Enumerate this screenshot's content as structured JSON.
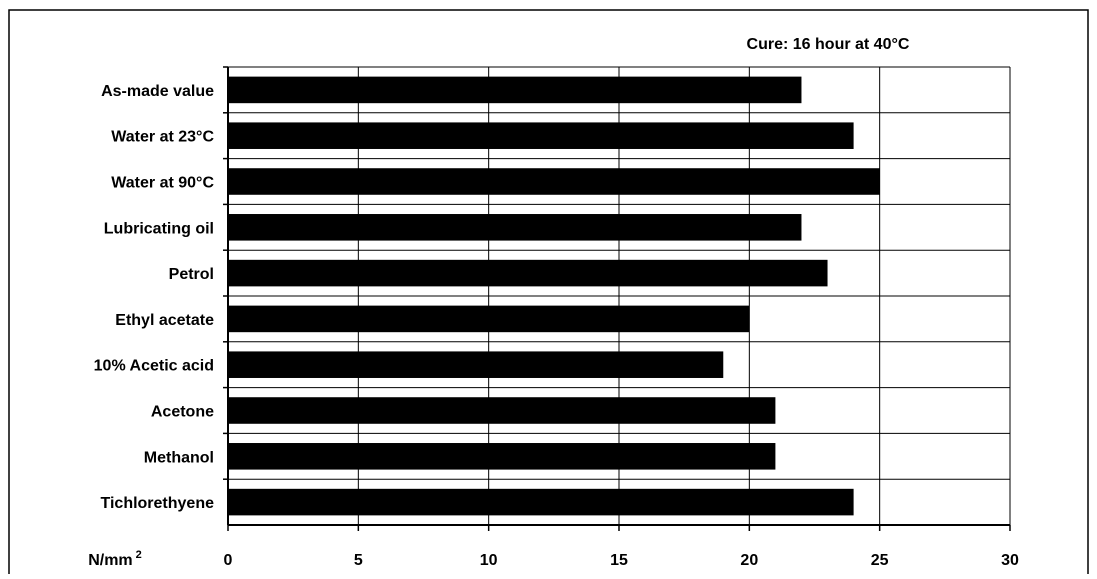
{
  "chart_data": {
    "type": "bar",
    "orientation": "horizontal",
    "title": "Cure: 16 hour at 40°C",
    "xlabel": "N/mm",
    "xlabel_superscript": "2",
    "ylabel": "",
    "categories": [
      "As-made value",
      "Water at 23°C",
      "Water at 90°C",
      "Lubricating oil",
      "Petrol",
      "Ethyl acetate",
      "10% Acetic acid",
      "Acetone",
      "Methanol",
      "Tichlorethyene"
    ],
    "values": [
      22,
      24,
      25,
      22,
      23,
      20,
      19,
      21,
      21,
      24
    ],
    "xlim": [
      0,
      30
    ],
    "xticks": [
      "0",
      "5",
      "10",
      "15",
      "20",
      "25",
      "30"
    ],
    "grid": true,
    "legend": "none",
    "bar_color": "#000000",
    "grid_color": "#000000",
    "background_color": "#ffffff"
  }
}
